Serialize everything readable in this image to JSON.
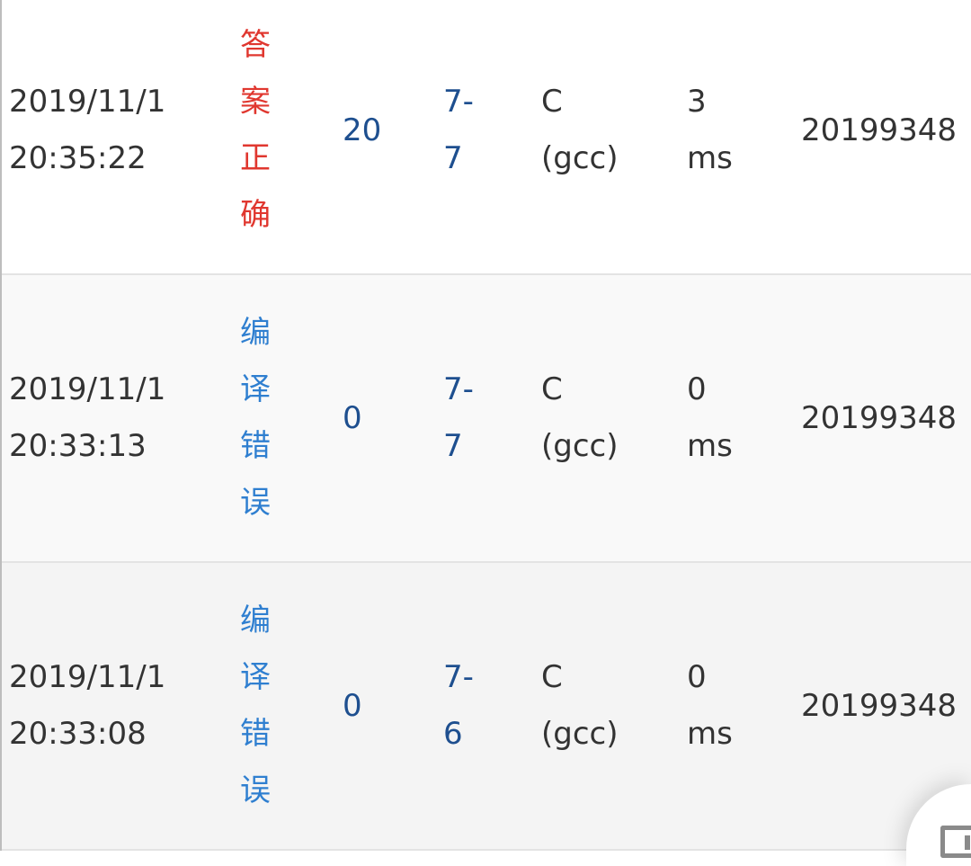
{
  "rows": [
    {
      "time": "2019/11/1 20:35:22",
      "status": "答案正确",
      "status_color": "#e0372f",
      "score": "20",
      "problem": "7-7",
      "language": "C (gcc)",
      "runtime": "3 ms",
      "user": "20199348"
    },
    {
      "time": "2019/11/1 20:33:13",
      "status": "编译错误",
      "status_color": "#2f7fd0",
      "score": "0",
      "problem": "7-7",
      "language": "C (gcc)",
      "runtime": "0 ms",
      "user": "20199348"
    },
    {
      "time": "2019/11/1 20:33:08",
      "status": "编译错误",
      "status_color": "#2f7fd0",
      "score": "0",
      "problem": "7-6",
      "language": "C (gcc)",
      "runtime": "0 ms",
      "user": "20199348"
    }
  ],
  "fab": {
    "icon": "feedback-icon"
  }
}
